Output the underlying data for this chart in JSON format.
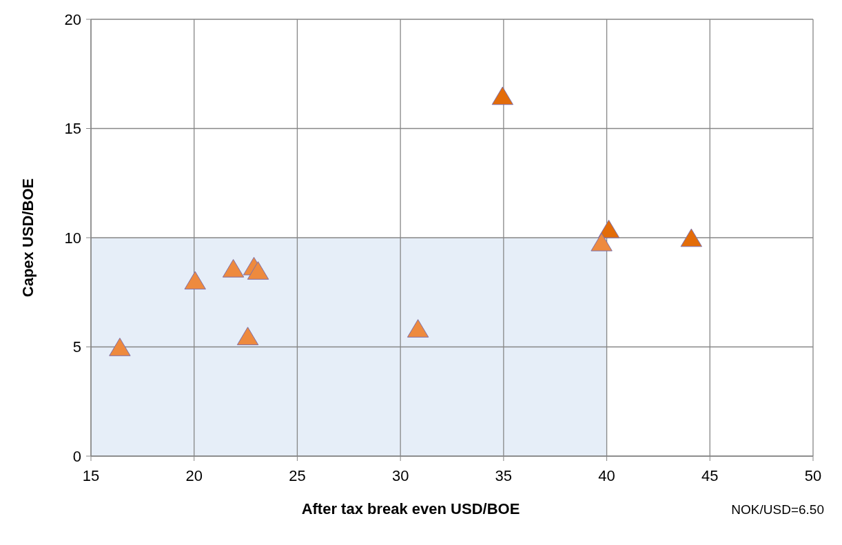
{
  "chart_data": {
    "type": "scatter",
    "xlabel": "After tax break even USD/BOE",
    "ylabel": "Capex USD/BOE",
    "annotations": [
      "NOK/USD=6.50"
    ],
    "xlim": [
      15,
      50
    ],
    "xticks": [
      15,
      20,
      25,
      30,
      35,
      40,
      45,
      50
    ],
    "ylim": [
      0,
      20
    ],
    "yticks": [
      0,
      5,
      10,
      15,
      20
    ],
    "grid": true,
    "series": [
      {
        "type": "area",
        "color": "#e6eef8",
        "x": [
          15,
          40
        ],
        "values": [
          10,
          10
        ]
      },
      {
        "marker": "triangle",
        "x": [
          16.4,
          20.05,
          21.9,
          22.9,
          23.1,
          22.6,
          30.85,
          34.95,
          40.1,
          39.75,
          44.1
        ],
        "values": [
          4.9,
          7.95,
          8.5,
          8.6,
          8.4,
          5.4,
          5.75,
          16.4,
          10.3,
          9.7,
          9.9
        ],
        "colors": [
          "#ee8a3e",
          "#ee8a3e",
          "#ee8a3e",
          "#ee8a3e",
          "#ee8a3e",
          "#ee8a3e",
          "#ee8a3e",
          "#e36c09",
          "#e36c09",
          "#ee8a3e",
          "#e36c09"
        ]
      }
    ]
  }
}
